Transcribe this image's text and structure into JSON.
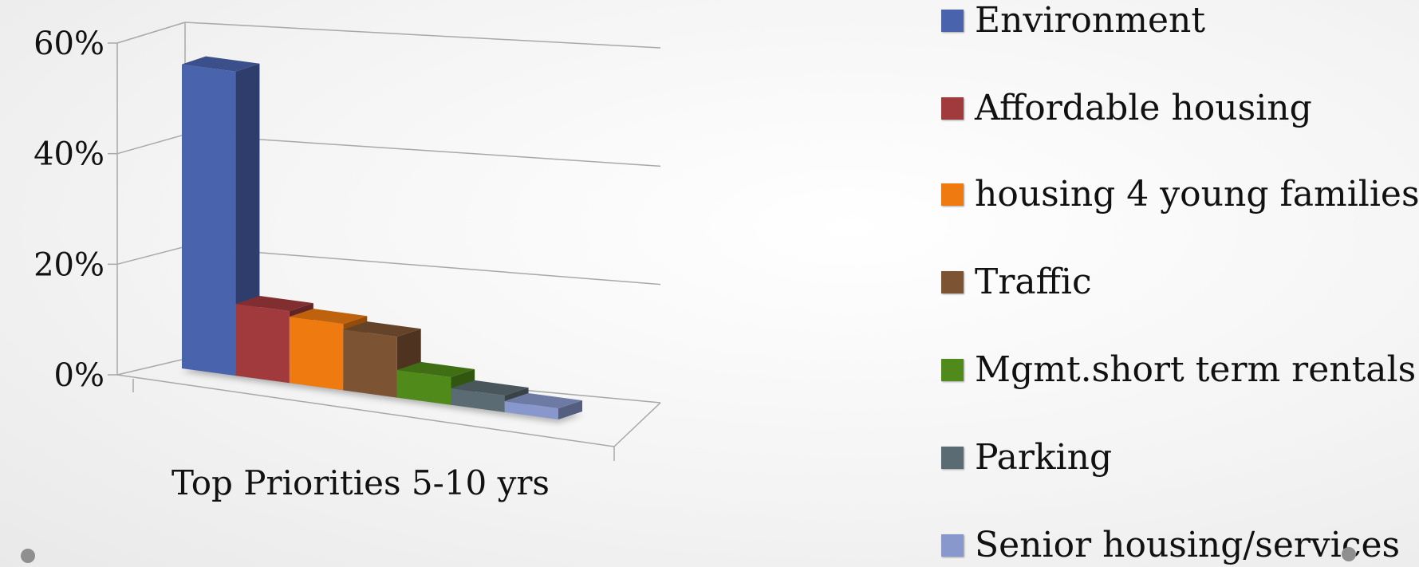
{
  "chart_data": {
    "type": "bar",
    "categories": [
      "Top Priorities 5-10 yrs"
    ],
    "series": [
      {
        "name": "Environment",
        "values": [
          55
        ],
        "color": "#4a63ad"
      },
      {
        "name": "Affordable housing",
        "values": [
          13
        ],
        "color": "#a03a3c"
      },
      {
        "name": "housing 4 young families",
        "values": [
          12
        ],
        "color": "#ee7a10"
      },
      {
        "name": "Traffic",
        "values": [
          11
        ],
        "color": "#7d5433"
      },
      {
        "name": "Mgmt.short term rentals",
        "values": [
          5
        ],
        "color": "#4f8a1a"
      },
      {
        "name": "Parking",
        "values": [
          3
        ],
        "color": "#5b6b73"
      },
      {
        "name": "Senior housing/services",
        "values": [
          2
        ],
        "color": "#8898cc"
      }
    ],
    "yticks": [
      "0%",
      "20%",
      "40%",
      "60%"
    ],
    "ylim": [
      0,
      60
    ],
    "grid": true,
    "legend_position": "right",
    "three_d": true
  }
}
